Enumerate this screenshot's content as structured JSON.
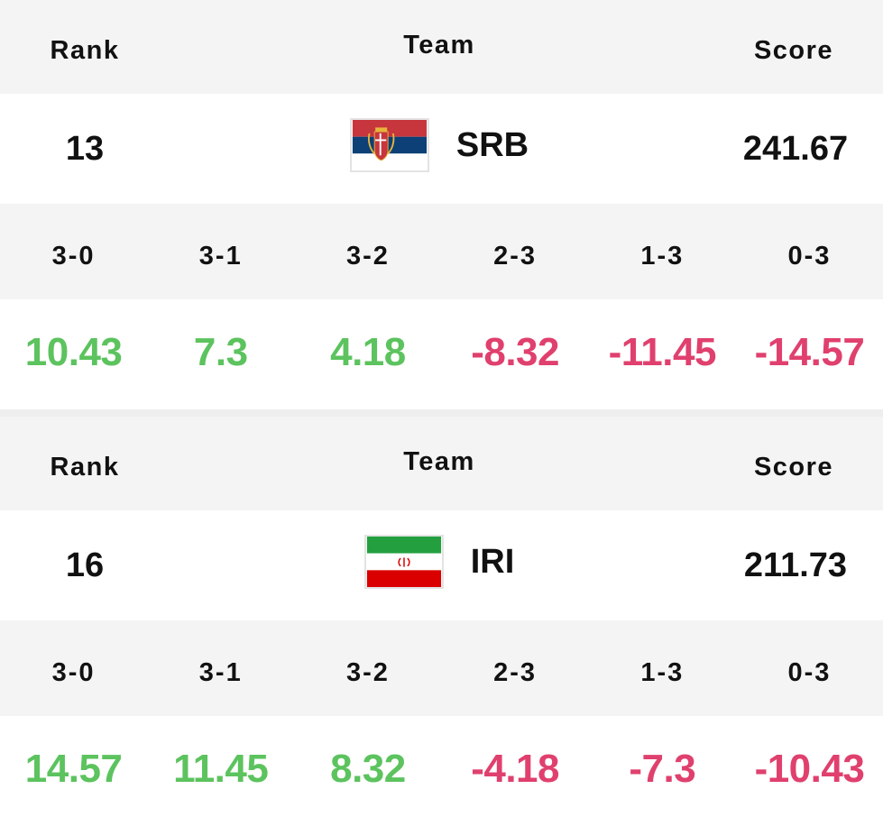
{
  "colors": {
    "positive": "#5cc35e",
    "negative": "#e0406e",
    "header_bg": "#f4f4f4"
  },
  "headers": {
    "rank": "Rank",
    "team": "Team",
    "score": "Score"
  },
  "outcome_labels": [
    "3-0",
    "3-1",
    "3-2",
    "2-3",
    "1-3",
    "0-3"
  ],
  "teams": [
    {
      "rank": "13",
      "code": "SRB",
      "flag_icon": "serbia-flag-icon",
      "score": "241.67",
      "values": [
        "10.43",
        "7.3",
        "4.18",
        "-8.32",
        "-11.45",
        "-14.57"
      ]
    },
    {
      "rank": "16",
      "code": "IRI",
      "flag_icon": "iran-flag-icon",
      "score": "211.73",
      "values": [
        "14.57",
        "11.45",
        "8.32",
        "-4.18",
        "-7.3",
        "-10.43"
      ]
    }
  ]
}
